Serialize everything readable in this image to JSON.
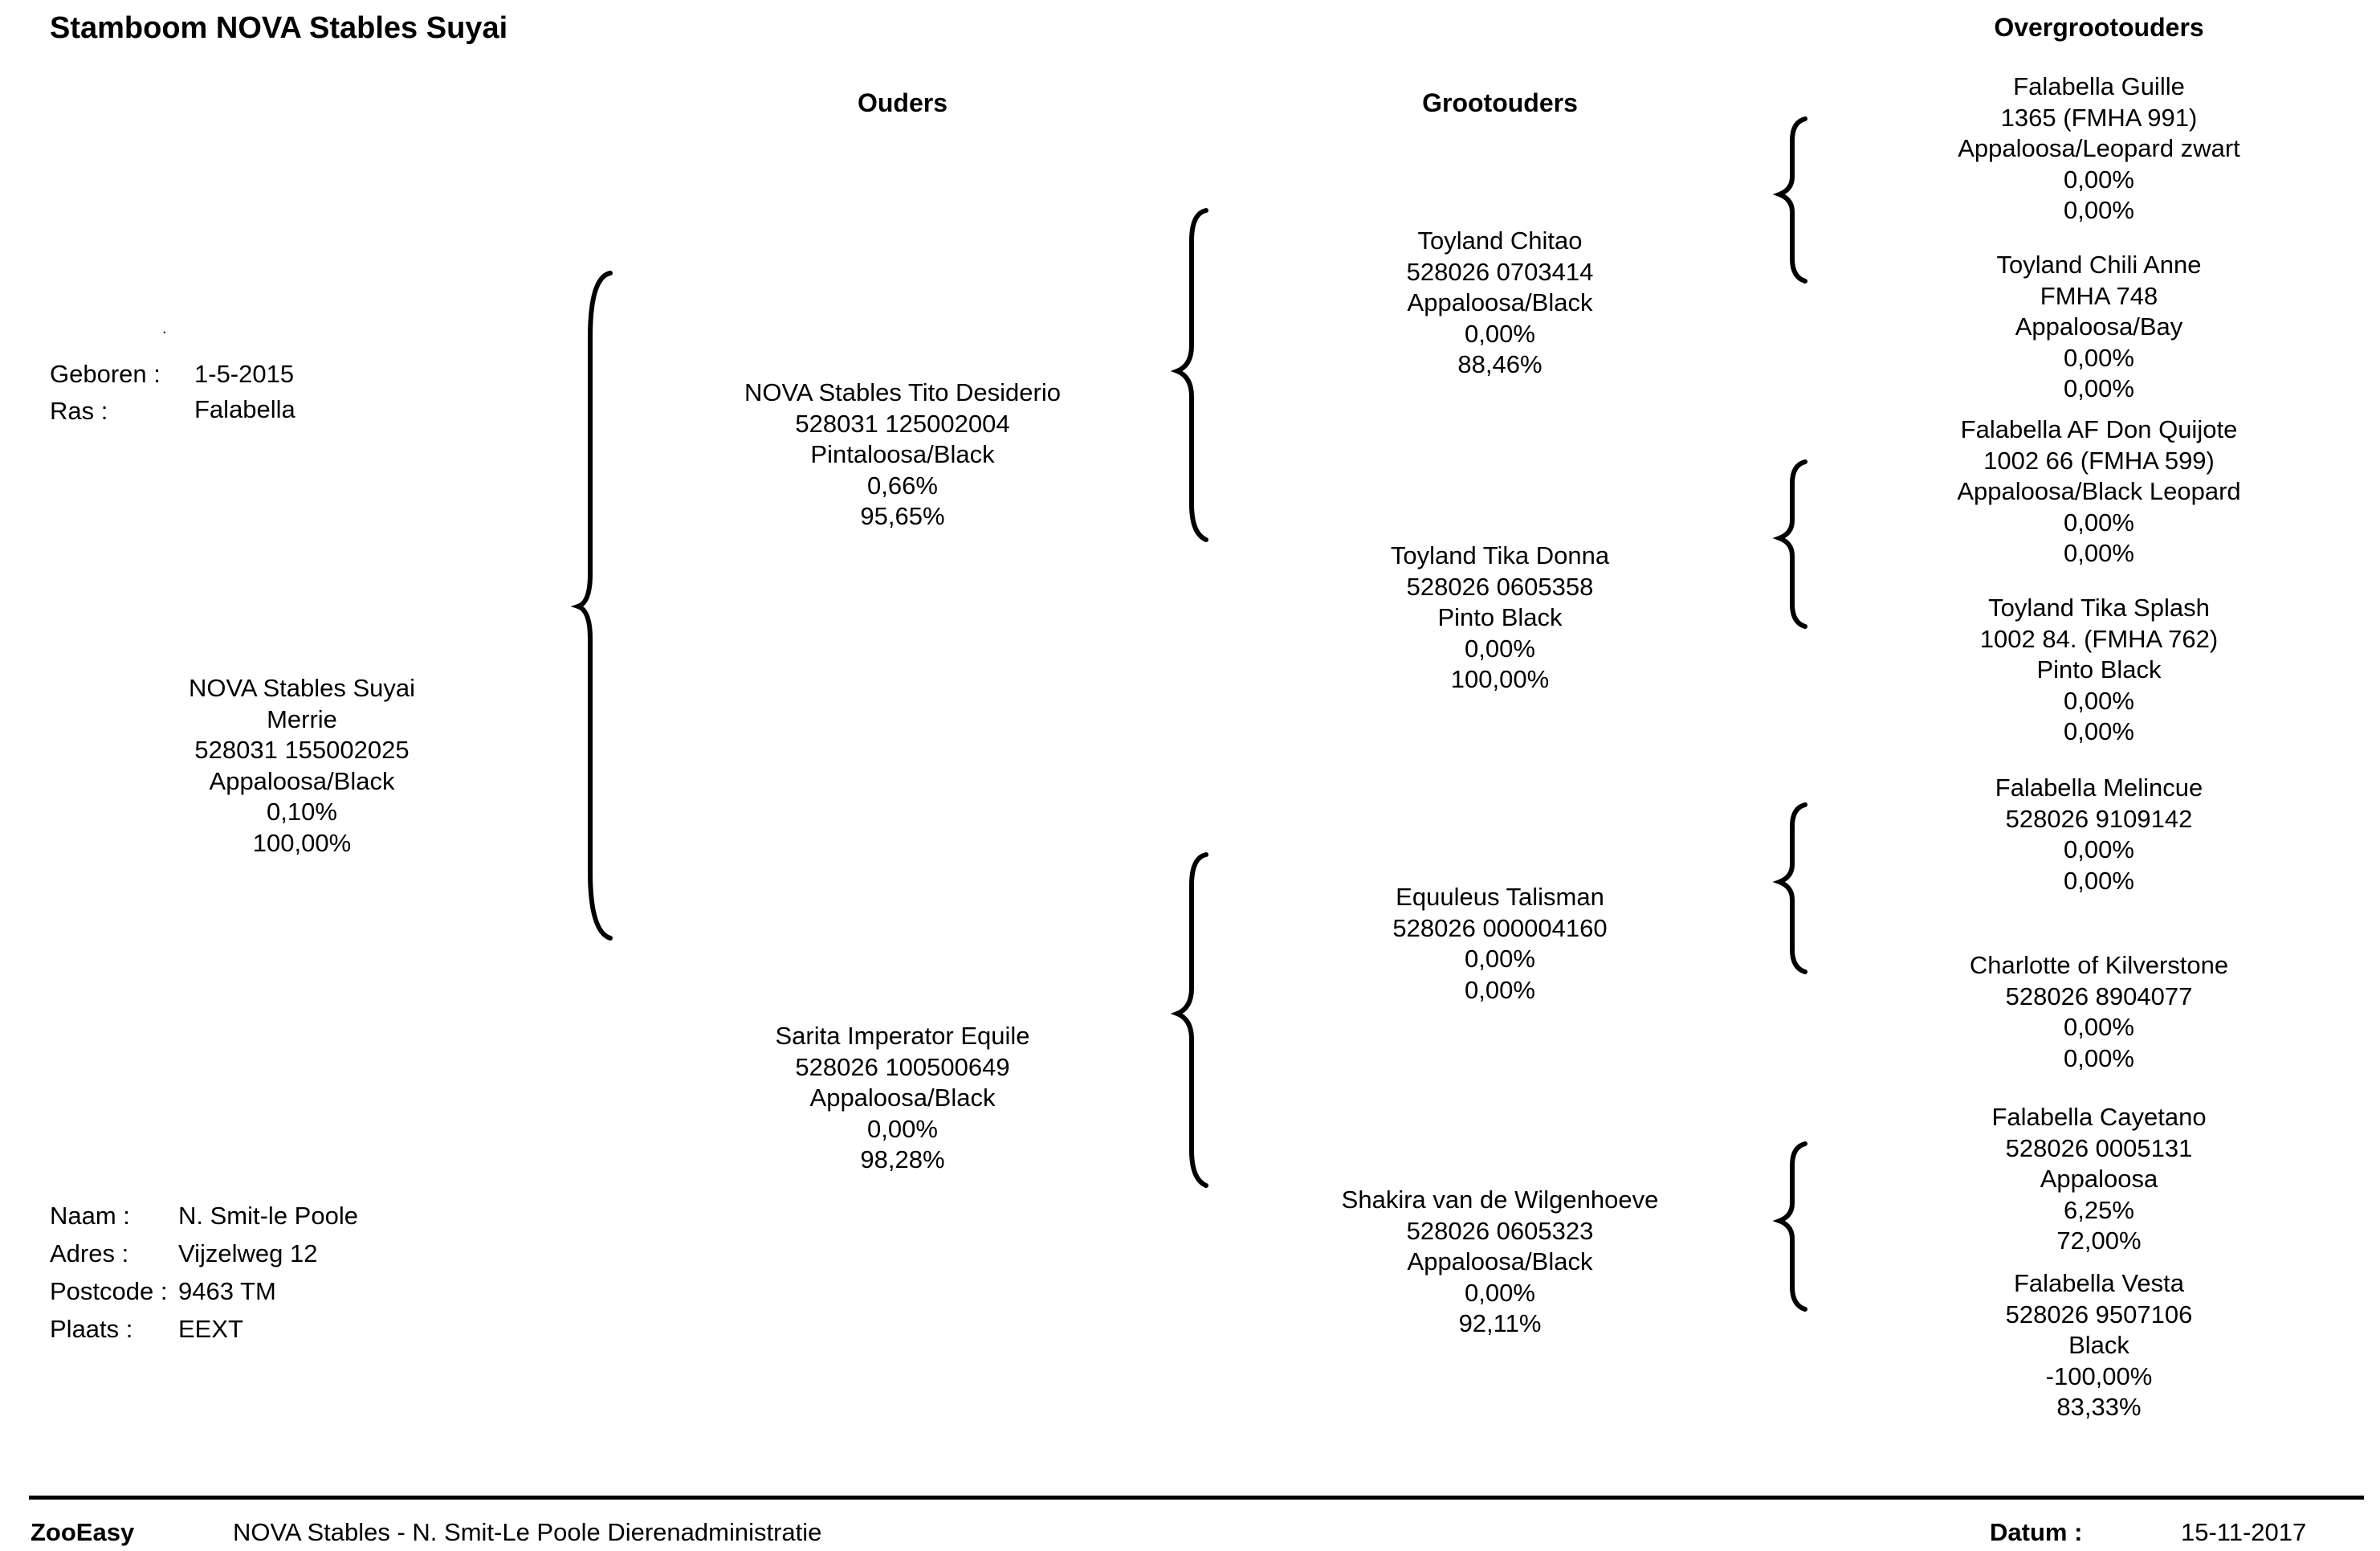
{
  "title": "Stamboom NOVA Stables Suyai",
  "headers": {
    "parents": "Ouders",
    "grandparents": "Grootouders",
    "great_grandparents": "Overgrootouders"
  },
  "dot": ".",
  "birth": {
    "born_label": "Geboren :",
    "born_value": "1-5-2015",
    "breed_label": "Ras :",
    "breed_value": "Falabella"
  },
  "subject": {
    "name": "NOVA Stables Suyai",
    "sex": "Merrie",
    "id": "528031 155002025",
    "color": "Appaloosa/Black",
    "pct1": "0,10%",
    "pct2": "100,00%"
  },
  "owner": {
    "name_label": "Naam :",
    "name_value": "N.  Smit-le Poole",
    "address_label": "Adres :",
    "address_value": "Vijzelweg 12",
    "postcode_label": "Postcode :",
    "postcode_value": "9463 TM",
    "city_label": "Plaats :",
    "city_value": "EEXT"
  },
  "parents": [
    {
      "lines": [
        "NOVA Stables Tito Desiderio",
        "528031 125002004",
        "Pintaloosa/Black",
        "0,66%",
        "95,65%"
      ]
    },
    {
      "lines": [
        "Sarita Imperator Equile",
        "528026 100500649",
        "Appaloosa/Black",
        "0,00%",
        "98,28%"
      ]
    }
  ],
  "grandparents": [
    {
      "lines": [
        "Toyland Chitao",
        "528026 0703414",
        "Appaloosa/Black",
        "0,00%",
        "88,46%"
      ]
    },
    {
      "lines": [
        "Toyland Tika Donna",
        "528026 0605358",
        "Pinto Black",
        "0,00%",
        "100,00%"
      ]
    },
    {
      "lines": [
        "Equuleus Talisman",
        "528026 000004160",
        "0,00%",
        "0,00%"
      ]
    },
    {
      "lines": [
        "Shakira van de Wilgenhoeve",
        "528026 0605323",
        "Appaloosa/Black",
        "0,00%",
        "92,11%"
      ]
    }
  ],
  "great_grandparents": [
    {
      "lines": [
        "Falabella Guille",
        "1365 (FMHA 991)",
        "Appaloosa/Leopard zwart",
        "0,00%",
        "0,00%"
      ]
    },
    {
      "lines": [
        "Toyland Chili Anne",
        "FMHA 748",
        "Appaloosa/Bay",
        "0,00%",
        "0,00%"
      ]
    },
    {
      "lines": [
        "Falabella AF Don Quijote",
        "1002 66 (FMHA 599)",
        "Appaloosa/Black Leopard",
        "0,00%",
        "0,00%"
      ]
    },
    {
      "lines": [
        "Toyland Tika Splash",
        "1002 84. (FMHA 762)",
        "Pinto Black",
        "0,00%",
        "0,00%"
      ]
    },
    {
      "lines": [
        "Falabella Melincue",
        "528026 9109142",
        "0,00%",
        "0,00%"
      ]
    },
    {
      "lines": [
        "Charlotte of Kilverstone",
        "528026 8904077",
        "0,00%",
        "0,00%"
      ]
    },
    {
      "lines": [
        "Falabella Cayetano",
        "528026 0005131",
        "Appaloosa",
        "6,25%",
        "72,00%"
      ]
    },
    {
      "lines": [
        "Falabella Vesta",
        "528026 9507106",
        "Black",
        "-100,00%",
        "83,33%"
      ]
    }
  ],
  "footer": {
    "brand": "ZooEasy",
    "description": "NOVA Stables - N. Smit-Le Poole Dierenadministratie",
    "date_label": "Datum :",
    "date_value": "15-11-2017"
  }
}
